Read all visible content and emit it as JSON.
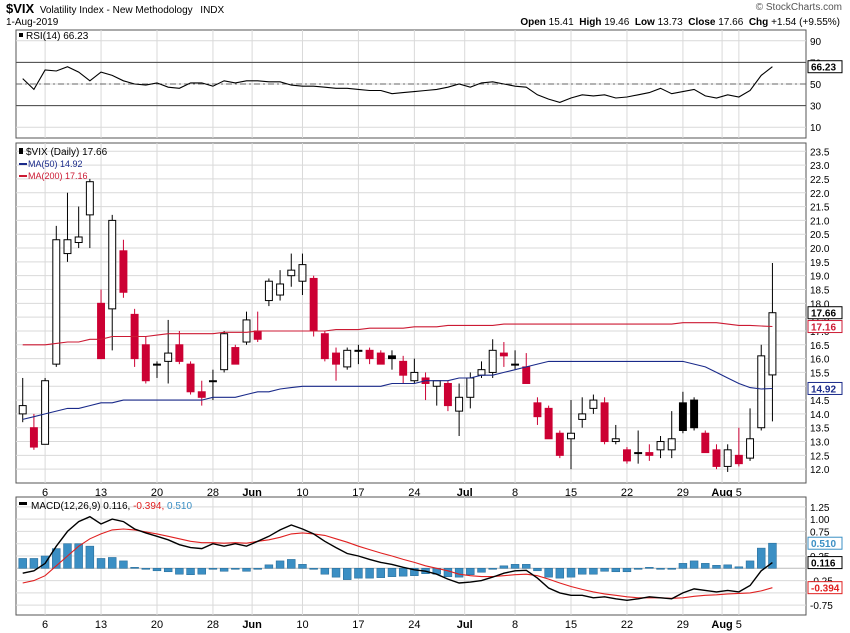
{
  "header": {
    "symbol": "$VIX",
    "name": "Volatility Index - New Methodology",
    "exchange": "INDX",
    "date": "1-Aug-2019",
    "brand": "© StockCharts.com",
    "ohlc": {
      "open_label": "Open",
      "open": "15.41",
      "high_label": "High",
      "high": "19.46",
      "low_label": "Low",
      "low": "13.73",
      "close_label": "Close",
      "close": "17.66",
      "chg_label": "Chg",
      "chg": "+1.54 (+9.55%)"
    }
  },
  "colors": {
    "up_candle": "#ffffff",
    "down_candle": "#cc0033",
    "black_candle": "#000000",
    "ma50": "#1a2a8a",
    "ma200": "#cc1a33",
    "macd_line": "#000000",
    "signal_line": "#e02020",
    "histogram": "#3b8fc4",
    "rsi_line": "#000000",
    "grid": "#d9d9d9",
    "panel_bg": "#ffffff"
  },
  "chart_data": [
    {
      "type": "line",
      "panel": "rsi",
      "legend": "RSI(14) 66.23",
      "ylim": [
        0,
        100
      ],
      "yticks": [
        10,
        30,
        50,
        70,
        90
      ],
      "reference_lines": [
        30,
        50,
        70
      ],
      "current_label": "66.23",
      "series": [
        {
          "name": "RSI(14)",
          "values": [
            55,
            45,
            63,
            62,
            66,
            61,
            53,
            61,
            58,
            53,
            50,
            49,
            51,
            47,
            46,
            51,
            51,
            48,
            53,
            51,
            53,
            53,
            52,
            52,
            49,
            48,
            48,
            47,
            46,
            46,
            45,
            44,
            44,
            41,
            42,
            43,
            44,
            45,
            47,
            50,
            47,
            51,
            52,
            50,
            48,
            47,
            40,
            36,
            33,
            37,
            40,
            39,
            40,
            37,
            38,
            40,
            42,
            46,
            41,
            43,
            45,
            39,
            37,
            40,
            38,
            44,
            58,
            66
          ]
        }
      ]
    },
    {
      "type": "candlestick",
      "panel": "price",
      "legend": [
        "$VIX (Daily) 17.66",
        "MA(50) 14.92",
        "MA(200) 17.16"
      ],
      "ylim": [
        11.5,
        23.8
      ],
      "yticks": [
        12.0,
        12.5,
        13.0,
        13.5,
        14.0,
        14.5,
        15.0,
        15.5,
        16.0,
        16.5,
        17.0,
        17.5,
        18.0,
        18.5,
        19.0,
        19.5,
        20.0,
        20.5,
        21.0,
        21.5,
        22.0,
        22.5,
        23.0,
        23.5
      ],
      "yaxis_tags": [
        {
          "label": "17.66",
          "value": 17.66
        },
        {
          "label": "17.16",
          "value": 17.16
        },
        {
          "label": "14.92",
          "value": 14.92
        }
      ],
      "candles": [
        [
          14.0,
          14.3,
          15.3,
          13.7
        ],
        [
          13.5,
          12.8,
          14.0,
          12.7
        ],
        [
          12.9,
          15.2,
          15.3,
          12.9
        ],
        [
          15.8,
          20.3,
          20.8,
          15.7
        ],
        [
          19.8,
          20.3,
          22.0,
          19.5
        ],
        [
          20.2,
          20.4,
          21.5,
          20.0
        ],
        [
          21.2,
          22.4,
          22.5,
          20.0
        ],
        [
          18.0,
          16.0,
          18.5,
          16.0
        ],
        [
          17.8,
          21.0,
          21.2,
          16.3
        ],
        [
          19.9,
          18.4,
          20.3,
          18.2
        ],
        [
          17.6,
          16.0,
          17.8,
          15.7
        ],
        [
          16.5,
          15.2,
          16.8,
          15.1
        ],
        [
          15.8,
          15.8,
          15.9,
          15.3
        ],
        [
          15.9,
          16.2,
          17.4,
          15.1
        ],
        [
          16.5,
          15.9,
          17.0,
          15.8
        ],
        [
          15.8,
          14.8,
          15.9,
          14.7
        ],
        [
          14.8,
          14.6,
          15.2,
          14.3
        ],
        [
          15.2,
          15.2,
          15.6,
          14.5
        ],
        [
          15.6,
          16.9,
          17.0,
          15.5
        ],
        [
          16.4,
          15.8,
          16.5,
          15.8
        ],
        [
          16.6,
          17.4,
          17.7,
          16.5
        ],
        [
          17.0,
          16.7,
          17.7,
          16.6
        ],
        [
          18.1,
          18.8,
          18.9,
          17.9
        ],
        [
          18.3,
          18.7,
          19.2,
          18.1
        ],
        [
          19.0,
          19.2,
          19.8,
          18.6
        ],
        [
          18.8,
          19.4,
          19.8,
          18.3
        ],
        [
          18.9,
          17.0,
          19.0,
          16.8
        ],
        [
          16.9,
          16.0,
          17.0,
          15.9
        ],
        [
          16.2,
          15.8,
          16.4,
          15.2
        ],
        [
          15.7,
          16.3,
          16.4,
          15.6
        ],
        [
          16.3,
          16.3,
          16.5,
          15.8
        ],
        [
          16.3,
          16.0,
          16.4,
          15.8
        ],
        [
          16.2,
          15.8,
          16.3,
          15.8
        ],
        [
          16.1,
          16.0,
          16.3,
          15.6
        ],
        [
          15.9,
          15.4,
          16.1,
          15.1
        ],
        [
          15.2,
          15.5,
          16.0,
          15.1
        ],
        [
          15.3,
          15.1,
          15.5,
          14.5
        ],
        [
          15.0,
          15.2,
          15.2,
          14.3
        ],
        [
          15.1,
          14.3,
          15.2,
          14.1
        ],
        [
          14.1,
          14.6,
          15.1,
          13.2
        ],
        [
          14.6,
          15.3,
          15.5,
          14.2
        ],
        [
          15.4,
          15.6,
          15.9,
          15.3
        ],
        [
          15.5,
          16.3,
          16.7,
          15.3
        ],
        [
          16.2,
          16.1,
          16.6,
          15.7
        ],
        [
          15.8,
          15.8,
          16.3,
          15.6
        ],
        [
          15.7,
          15.1,
          16.2,
          15.1
        ],
        [
          14.4,
          13.9,
          14.6,
          13.6
        ],
        [
          14.2,
          13.1,
          14.3,
          13.1
        ],
        [
          13.3,
          12.5,
          13.4,
          12.4
        ],
        [
          13.1,
          13.3,
          14.5,
          12.0
        ],
        [
          13.8,
          14.0,
          14.6,
          13.5
        ],
        [
          14.2,
          14.5,
          14.7,
          14.0
        ],
        [
          14.4,
          13.0,
          14.6,
          12.9
        ],
        [
          13.0,
          13.1,
          13.6,
          12.9
        ],
        [
          12.7,
          12.3,
          12.8,
          12.2
        ],
        [
          12.6,
          12.6,
          13.4,
          12.2
        ],
        [
          12.6,
          12.5,
          12.9,
          12.3
        ],
        [
          12.7,
          13.0,
          13.2,
          12.4
        ],
        [
          12.7,
          13.1,
          14.1,
          12.4
        ],
        [
          14.4,
          13.4,
          14.8,
          13.3
        ],
        [
          14.5,
          13.5,
          14.6,
          13.4
        ],
        [
          13.3,
          12.6,
          13.4,
          12.6
        ],
        [
          12.7,
          12.1,
          12.9,
          12.0
        ],
        [
          12.1,
          12.7,
          12.9,
          11.9
        ],
        [
          12.5,
          12.2,
          13.5,
          12.1
        ],
        [
          12.4,
          13.1,
          14.2,
          12.3
        ],
        [
          13.5,
          16.1,
          16.5,
          13.4
        ],
        [
          15.41,
          17.66,
          19.46,
          13.73
        ]
      ],
      "series": [
        {
          "name": "MA(50)",
          "values": [
            13.8,
            13.9,
            14.0,
            14.1,
            14.2,
            14.2,
            14.3,
            14.4,
            14.4,
            14.5,
            14.5,
            14.5,
            14.5,
            14.5,
            14.5,
            14.5,
            14.5,
            14.6,
            14.6,
            14.6,
            14.7,
            14.8,
            14.8,
            14.9,
            14.95,
            15.0,
            15.0,
            15.0,
            15.0,
            15.0,
            15.0,
            15.0,
            15.0,
            15.1,
            15.1,
            15.1,
            15.2,
            15.2,
            15.2,
            15.3,
            15.3,
            15.4,
            15.4,
            15.5,
            15.6,
            15.7,
            15.8,
            15.9,
            15.9,
            15.9,
            15.9,
            15.9,
            15.9,
            15.9,
            15.9,
            15.9,
            15.9,
            15.9,
            15.9,
            15.9,
            15.8,
            15.7,
            15.5,
            15.3,
            15.1,
            14.95,
            14.9,
            14.92
          ]
        },
        {
          "name": "MA(200)",
          "values": [
            16.5,
            16.5,
            16.5,
            16.55,
            16.6,
            16.6,
            16.7,
            16.7,
            16.8,
            16.8,
            16.8,
            16.8,
            16.85,
            16.9,
            16.9,
            16.9,
            16.9,
            16.9,
            16.95,
            16.95,
            16.95,
            17.0,
            17.0,
            17.0,
            17.0,
            17.0,
            17.0,
            17.0,
            17.05,
            17.05,
            17.05,
            17.1,
            17.1,
            17.1,
            17.1,
            17.15,
            17.15,
            17.15,
            17.2,
            17.2,
            17.2,
            17.2,
            17.2,
            17.25,
            17.25,
            17.25,
            17.25,
            17.25,
            17.25,
            17.25,
            17.25,
            17.25,
            17.25,
            17.25,
            17.25,
            17.25,
            17.25,
            17.25,
            17.25,
            17.3,
            17.3,
            17.3,
            17.3,
            17.25,
            17.2,
            17.2,
            17.18,
            17.16
          ]
        }
      ]
    },
    {
      "type": "bar",
      "panel": "macd",
      "legend": "MACD(12,26,9)",
      "legend_values": {
        "macd": "0.116",
        "signal": "-0.394",
        "hist": "0.510"
      },
      "ylim": [
        -0.95,
        1.45
      ],
      "yticks": [
        -0.75,
        -0.5,
        -0.25,
        0.25,
        0.5,
        0.75,
        1.0,
        1.25
      ],
      "ytick_labels": [
        "-0.75",
        "",
        "-0.25",
        "0.25",
        "0.50",
        "0.75",
        "1.00",
        "1.25"
      ],
      "yaxis_tags": [
        {
          "label": "0.510",
          "value": 0.51
        },
        {
          "label": "0.116",
          "value": 0.116
        },
        {
          "label": "-0.394",
          "value": -0.394
        }
      ],
      "series": [
        {
          "name": "MACD",
          "values": [
            -0.1,
            -0.05,
            0.1,
            0.45,
            0.75,
            0.95,
            1.05,
            0.9,
            1.0,
            0.95,
            0.8,
            0.72,
            0.65,
            0.58,
            0.48,
            0.42,
            0.4,
            0.5,
            0.45,
            0.5,
            0.45,
            0.55,
            0.65,
            0.78,
            0.88,
            0.8,
            0.7,
            0.55,
            0.42,
            0.3,
            0.25,
            0.18,
            0.12,
            0.08,
            0.02,
            -0.03,
            -0.06,
            -0.12,
            -0.22,
            -0.3,
            -0.28,
            -0.25,
            -0.18,
            -0.1,
            -0.05,
            -0.04,
            -0.2,
            -0.4,
            -0.5,
            -0.55,
            -0.55,
            -0.6,
            -0.58,
            -0.62,
            -0.65,
            -0.62,
            -0.58,
            -0.6,
            -0.62,
            -0.5,
            -0.42,
            -0.45,
            -0.48,
            -0.45,
            -0.48,
            -0.35,
            -0.05,
            0.116
          ]
        },
        {
          "name": "Signal",
          "values": [
            -0.3,
            -0.25,
            -0.15,
            0.05,
            0.25,
            0.45,
            0.6,
            0.7,
            0.78,
            0.8,
            0.78,
            0.74,
            0.7,
            0.65,
            0.6,
            0.55,
            0.52,
            0.52,
            0.51,
            0.52,
            0.51,
            0.55,
            0.58,
            0.63,
            0.7,
            0.72,
            0.7,
            0.67,
            0.6,
            0.53,
            0.45,
            0.38,
            0.31,
            0.25,
            0.18,
            0.12,
            0.05,
            0.0,
            -0.05,
            -0.12,
            -0.15,
            -0.17,
            -0.17,
            -0.15,
            -0.13,
            -0.12,
            -0.15,
            -0.22,
            -0.3,
            -0.37,
            -0.43,
            -0.48,
            -0.52,
            -0.55,
            -0.58,
            -0.6,
            -0.6,
            -0.6,
            -0.61,
            -0.6,
            -0.57,
            -0.55,
            -0.54,
            -0.52,
            -0.51,
            -0.5,
            -0.46,
            -0.394
          ]
        },
        {
          "name": "Histogram",
          "values": [
            0.2,
            0.2,
            0.25,
            0.4,
            0.5,
            0.5,
            0.45,
            0.2,
            0.22,
            0.15,
            0.02,
            -0.02,
            -0.05,
            -0.07,
            -0.12,
            -0.13,
            -0.12,
            -0.02,
            -0.06,
            -0.02,
            -0.06,
            0.0,
            0.07,
            0.15,
            0.18,
            0.08,
            0.0,
            -0.12,
            -0.18,
            -0.23,
            -0.2,
            -0.2,
            -0.19,
            -0.17,
            -0.16,
            -0.15,
            -0.11,
            -0.12,
            -0.17,
            -0.18,
            -0.13,
            -0.08,
            -0.01,
            0.05,
            0.08,
            0.08,
            -0.05,
            -0.18,
            -0.2,
            -0.18,
            -0.12,
            -0.12,
            -0.06,
            -0.07,
            -0.07,
            -0.02,
            0.02,
            0.0,
            -0.01,
            0.1,
            0.15,
            0.1,
            0.06,
            0.07,
            0.03,
            0.15,
            0.41,
            0.51
          ]
        }
      ]
    }
  ],
  "x_axis": {
    "labels": [
      {
        "text": "6",
        "index": 2
      },
      {
        "text": "13",
        "index": 7
      },
      {
        "text": "20",
        "index": 12
      },
      {
        "text": "28",
        "index": 17
      },
      {
        "text": "Jun",
        "index": 20.5,
        "bold": true
      },
      {
        "text": "10",
        "index": 25
      },
      {
        "text": "17",
        "index": 30
      },
      {
        "text": "24",
        "index": 35
      },
      {
        "text": "Jul",
        "index": 39.5,
        "bold": true
      },
      {
        "text": "8",
        "index": 44
      },
      {
        "text": "15",
        "index": 49
      },
      {
        "text": "22",
        "index": 54
      },
      {
        "text": "29",
        "index": 59
      },
      {
        "text": "Aug",
        "index": 62.5,
        "bold": true
      },
      {
        "text": "5",
        "index": 64
      }
    ]
  }
}
